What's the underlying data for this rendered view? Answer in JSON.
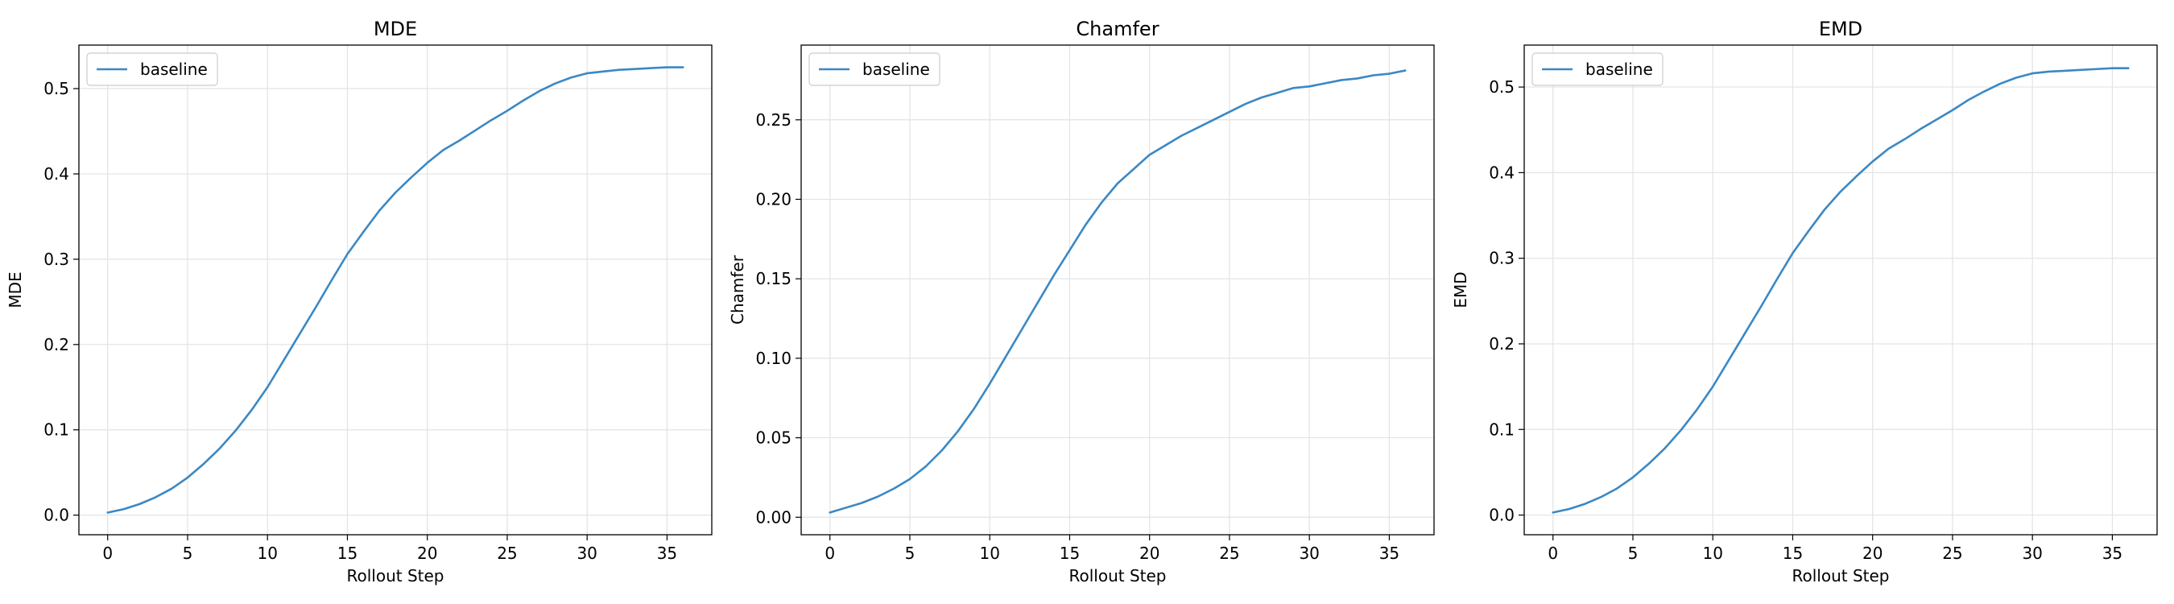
{
  "chart_data": [
    {
      "type": "line",
      "title": "MDE",
      "xlabel": "Rollout Step",
      "ylabel": "MDE",
      "xlim": [
        -1.8,
        37.8
      ],
      "ylim": [
        -0.023,
        0.551
      ],
      "xticks": [
        0,
        5,
        10,
        15,
        20,
        25,
        30,
        35
      ],
      "yticks": [
        0.0,
        0.1,
        0.2,
        0.3,
        0.4,
        0.5
      ],
      "ytick_labels": [
        "0.0",
        "0.1",
        "0.2",
        "0.3",
        "0.4",
        "0.5"
      ],
      "grid": true,
      "legend_position": "upper-left",
      "series": [
        {
          "name": "baseline",
          "color": "#3b88c4",
          "x": [
            0,
            1,
            2,
            3,
            4,
            5,
            6,
            7,
            8,
            9,
            10,
            11,
            12,
            13,
            14,
            15,
            16,
            17,
            18,
            19,
            20,
            21,
            22,
            23,
            24,
            25,
            26,
            27,
            28,
            29,
            30,
            31,
            32,
            33,
            34,
            35,
            36
          ],
          "y": [
            0.003,
            0.007,
            0.013,
            0.021,
            0.031,
            0.044,
            0.06,
            0.078,
            0.099,
            0.123,
            0.15,
            0.181,
            0.212,
            0.243,
            0.275,
            0.306,
            0.332,
            0.357,
            0.378,
            0.396,
            0.413,
            0.428,
            0.439,
            0.451,
            0.463,
            0.474,
            0.486,
            0.497,
            0.506,
            0.513,
            0.518,
            0.52,
            0.522,
            0.523,
            0.524,
            0.525,
            0.525
          ]
        }
      ]
    },
    {
      "type": "line",
      "title": "Chamfer",
      "xlabel": "Rollout Step",
      "ylabel": "Chamfer",
      "xlim": [
        -1.8,
        37.8
      ],
      "ylim": [
        -0.011,
        0.297
      ],
      "xticks": [
        0,
        5,
        10,
        15,
        20,
        25,
        30,
        35
      ],
      "yticks": [
        0.0,
        0.05,
        0.1,
        0.15,
        0.2,
        0.25
      ],
      "ytick_labels": [
        "0.00",
        "0.05",
        "0.10",
        "0.15",
        "0.20",
        "0.25"
      ],
      "grid": true,
      "legend_position": "upper-left",
      "series": [
        {
          "name": "baseline",
          "color": "#3b88c4",
          "x": [
            0,
            1,
            2,
            3,
            4,
            5,
            6,
            7,
            8,
            9,
            10,
            11,
            12,
            13,
            14,
            15,
            16,
            17,
            18,
            19,
            20,
            21,
            22,
            23,
            24,
            25,
            26,
            27,
            28,
            29,
            30,
            31,
            32,
            33,
            34,
            35,
            36
          ],
          "y": [
            0.003,
            0.006,
            0.009,
            0.013,
            0.018,
            0.024,
            0.032,
            0.042,
            0.054,
            0.068,
            0.084,
            0.101,
            0.118,
            0.135,
            0.152,
            0.168,
            0.184,
            0.198,
            0.21,
            0.219,
            0.228,
            0.234,
            0.24,
            0.245,
            0.25,
            0.255,
            0.26,
            0.264,
            0.267,
            0.27,
            0.271,
            0.273,
            0.275,
            0.276,
            0.278,
            0.279,
            0.281
          ]
        }
      ]
    },
    {
      "type": "line",
      "title": "EMD",
      "xlabel": "Rollout Step",
      "ylabel": "EMD",
      "xlim": [
        -1.8,
        37.8
      ],
      "ylim": [
        -0.023,
        0.549
      ],
      "xticks": [
        0,
        5,
        10,
        15,
        20,
        25,
        30,
        35
      ],
      "yticks": [
        0.0,
        0.1,
        0.2,
        0.3,
        0.4,
        0.5
      ],
      "ytick_labels": [
        "0.0",
        "0.1",
        "0.2",
        "0.3",
        "0.4",
        "0.5"
      ],
      "grid": true,
      "legend_position": "upper-left",
      "series": [
        {
          "name": "baseline",
          "color": "#3b88c4",
          "x": [
            0,
            1,
            2,
            3,
            4,
            5,
            6,
            7,
            8,
            9,
            10,
            11,
            12,
            13,
            14,
            15,
            16,
            17,
            18,
            19,
            20,
            21,
            22,
            23,
            24,
            25,
            26,
            27,
            28,
            29,
            30,
            31,
            32,
            33,
            34,
            35,
            36
          ],
          "y": [
            0.003,
            0.007,
            0.013,
            0.021,
            0.031,
            0.044,
            0.06,
            0.078,
            0.099,
            0.123,
            0.15,
            0.181,
            0.212,
            0.243,
            0.275,
            0.306,
            0.332,
            0.357,
            0.378,
            0.396,
            0.413,
            0.428,
            0.439,
            0.451,
            0.462,
            0.473,
            0.485,
            0.495,
            0.504,
            0.511,
            0.516,
            0.518,
            0.519,
            0.52,
            0.521,
            0.522,
            0.522
          ]
        }
      ]
    }
  ]
}
